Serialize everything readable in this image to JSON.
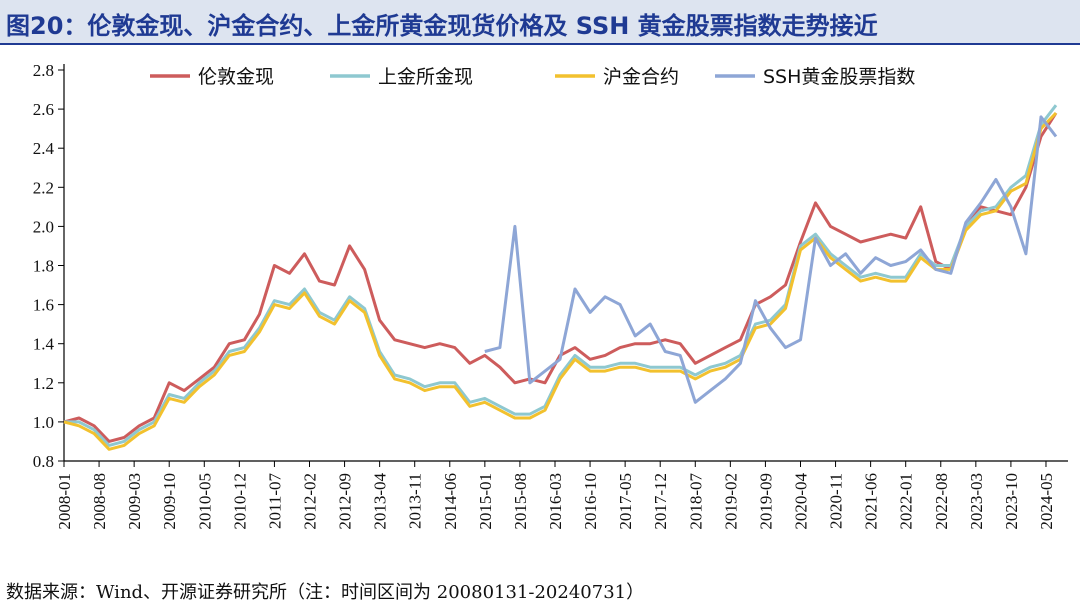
{
  "title": "图20：伦敦金现、沪金合约、上金所黄金现货价格及 SSH 黄金股票指数走势接近",
  "source": "数据来源：Wind、开源证券研究所（注：时间区间为 20080131-20240731）",
  "colors": {
    "title": "#1f3a93",
    "axis": "#000000"
  },
  "chart_data": {
    "type": "line",
    "title": "",
    "xlabel": "",
    "ylabel": "",
    "ylim": [
      0.8,
      2.8
    ],
    "yticks": [
      "0.8",
      "1.0",
      "1.2",
      "1.4",
      "1.6",
      "1.8",
      "2.0",
      "2.2",
      "2.4",
      "2.6",
      "2.8"
    ],
    "grid": false,
    "legend_position": "top",
    "x_tick_labels": [
      "2008-01",
      "2008-08",
      "2009-03",
      "2009-10",
      "2010-05",
      "2010-12",
      "2011-07",
      "2012-02",
      "2012-09",
      "2013-04",
      "2013-11",
      "2014-06",
      "2015-01",
      "2015-08",
      "2016-03",
      "2016-10",
      "2017-05",
      "2017-12",
      "2018-07",
      "2019-02",
      "2019-09",
      "2020-04",
      "2020-11",
      "2021-06",
      "2022-01",
      "2022-08",
      "2023-03",
      "2023-10",
      "2024-05"
    ],
    "x": [
      "2008-01",
      "2008-04",
      "2008-07",
      "2008-10",
      "2009-01",
      "2009-04",
      "2009-07",
      "2009-10",
      "2010-01",
      "2010-04",
      "2010-07",
      "2010-10",
      "2011-01",
      "2011-04",
      "2011-07",
      "2011-10",
      "2012-01",
      "2012-04",
      "2012-07",
      "2012-10",
      "2013-01",
      "2013-04",
      "2013-07",
      "2013-10",
      "2014-01",
      "2014-04",
      "2014-07",
      "2014-10",
      "2015-01",
      "2015-04",
      "2015-07",
      "2015-10",
      "2016-01",
      "2016-04",
      "2016-07",
      "2016-10",
      "2017-01",
      "2017-04",
      "2017-07",
      "2017-10",
      "2018-01",
      "2018-04",
      "2018-07",
      "2018-10",
      "2019-01",
      "2019-04",
      "2019-07",
      "2019-10",
      "2020-01",
      "2020-04",
      "2020-07",
      "2020-10",
      "2021-01",
      "2021-04",
      "2021-07",
      "2021-10",
      "2022-01",
      "2022-04",
      "2022-07",
      "2022-10",
      "2023-01",
      "2023-04",
      "2023-07",
      "2023-10",
      "2024-01",
      "2024-04",
      "2024-07"
    ],
    "series": [
      {
        "name": "伦敦金现",
        "color": "#cd5c5c",
        "values": [
          1.0,
          1.02,
          0.98,
          0.9,
          0.92,
          0.98,
          1.02,
          1.2,
          1.16,
          1.22,
          1.28,
          1.4,
          1.42,
          1.55,
          1.8,
          1.76,
          1.86,
          1.72,
          1.7,
          1.9,
          1.78,
          1.52,
          1.42,
          1.4,
          1.38,
          1.4,
          1.38,
          1.3,
          1.34,
          1.28,
          1.2,
          1.22,
          1.2,
          1.34,
          1.38,
          1.32,
          1.34,
          1.38,
          1.4,
          1.4,
          1.42,
          1.4,
          1.3,
          1.34,
          1.38,
          1.42,
          1.6,
          1.64,
          1.7,
          1.92,
          2.12,
          2.0,
          1.96,
          1.92,
          1.94,
          1.96,
          1.94,
          2.1,
          1.82,
          1.78,
          2.0,
          2.1,
          2.08,
          2.06,
          2.2,
          2.46,
          2.58
        ]
      },
      {
        "name": "上金所金现",
        "color": "#8ec8d0",
        "values": [
          1.0,
          1.0,
          0.96,
          0.88,
          0.9,
          0.96,
          1.0,
          1.14,
          1.12,
          1.2,
          1.26,
          1.36,
          1.38,
          1.48,
          1.62,
          1.6,
          1.68,
          1.56,
          1.52,
          1.64,
          1.58,
          1.36,
          1.24,
          1.22,
          1.18,
          1.2,
          1.2,
          1.1,
          1.12,
          1.08,
          1.04,
          1.04,
          1.08,
          1.24,
          1.34,
          1.28,
          1.28,
          1.3,
          1.3,
          1.28,
          1.28,
          1.28,
          1.24,
          1.28,
          1.3,
          1.34,
          1.5,
          1.52,
          1.6,
          1.9,
          1.96,
          1.86,
          1.8,
          1.74,
          1.76,
          1.74,
          1.74,
          1.86,
          1.8,
          1.8,
          2.0,
          2.08,
          2.1,
          2.2,
          2.26,
          2.52,
          2.62
        ]
      },
      {
        "name": "沪金合约",
        "color": "#f2c12e",
        "values": [
          1.0,
          0.98,
          0.94,
          0.86,
          0.88,
          0.94,
          0.98,
          1.12,
          1.1,
          1.18,
          1.24,
          1.34,
          1.36,
          1.46,
          1.6,
          1.58,
          1.66,
          1.54,
          1.5,
          1.62,
          1.56,
          1.34,
          1.22,
          1.2,
          1.16,
          1.18,
          1.18,
          1.08,
          1.1,
          1.06,
          1.02,
          1.02,
          1.06,
          1.22,
          1.32,
          1.26,
          1.26,
          1.28,
          1.28,
          1.26,
          1.26,
          1.26,
          1.22,
          1.26,
          1.28,
          1.32,
          1.48,
          1.5,
          1.58,
          1.88,
          1.94,
          1.84,
          1.78,
          1.72,
          1.74,
          1.72,
          1.72,
          1.84,
          1.78,
          1.78,
          1.98,
          2.06,
          2.08,
          2.18,
          2.22,
          2.5,
          2.58
        ]
      },
      {
        "name": "SSH黄金股票指数",
        "color": "#8ea6d6",
        "values": [
          null,
          null,
          null,
          null,
          null,
          null,
          null,
          null,
          null,
          null,
          null,
          null,
          null,
          null,
          null,
          null,
          null,
          null,
          null,
          null,
          null,
          null,
          null,
          null,
          null,
          null,
          null,
          null,
          1.36,
          1.38,
          2.0,
          1.2,
          1.26,
          1.32,
          1.68,
          1.56,
          1.64,
          1.6,
          1.44,
          1.5,
          1.36,
          1.34,
          1.1,
          1.16,
          1.22,
          1.3,
          1.62,
          1.48,
          1.38,
          1.42,
          1.94,
          1.8,
          1.86,
          1.76,
          1.84,
          1.8,
          1.82,
          1.88,
          1.78,
          1.76,
          2.02,
          2.12,
          2.24,
          2.1,
          1.86,
          2.56,
          2.46
        ]
      }
    ]
  }
}
